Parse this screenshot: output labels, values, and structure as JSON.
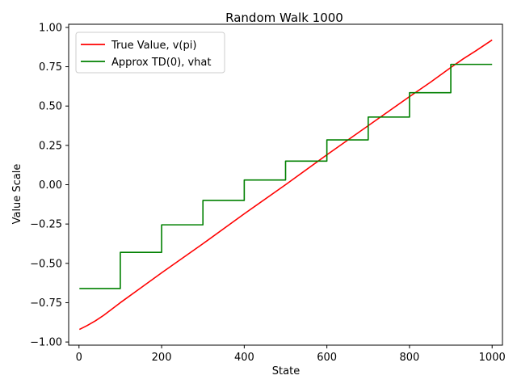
{
  "chart_data": {
    "type": "line",
    "title": "Random Walk 1000",
    "xlabel": "State",
    "ylabel": "Value Scale",
    "xlim": [
      -25,
      1025
    ],
    "ylim": [
      -1.02,
      1.02
    ],
    "xticks": [
      0,
      200,
      400,
      600,
      800,
      1000
    ],
    "xtick_labels": [
      "0",
      "200",
      "400",
      "600",
      "800",
      "1000"
    ],
    "yticks": [
      -1.0,
      -0.75,
      -0.5,
      -0.25,
      0.0,
      0.25,
      0.5,
      0.75,
      1.0
    ],
    "ytick_labels": [
      "−1.00",
      "−0.75",
      "−0.50",
      "−0.25",
      "0.00",
      "0.25",
      "0.50",
      "0.75",
      "1.00"
    ],
    "grid": false,
    "legend_position": "upper-left",
    "series": [
      {
        "name": "True Value, v(pi)",
        "color": "#ff0000",
        "x": [
          1,
          20,
          40,
          60,
          80,
          100,
          150,
          200,
          300,
          400,
          500,
          600,
          700,
          800,
          850,
          900,
          930,
          960,
          1000
        ],
        "y": [
          -0.92,
          -0.895,
          -0.865,
          -0.83,
          -0.79,
          -0.75,
          -0.655,
          -0.56,
          -0.375,
          -0.185,
          0.0,
          0.19,
          0.375,
          0.56,
          0.65,
          0.745,
          0.8,
          0.85,
          0.92
        ]
      },
      {
        "name": "Approx TD(0), vhat",
        "color": "#008000",
        "x": [
          1,
          100,
          100,
          200,
          200,
          300,
          300,
          400,
          400,
          500,
          500,
          600,
          600,
          700,
          700,
          800,
          800,
          900,
          900,
          1000
        ],
        "y": [
          -0.66,
          -0.66,
          -0.43,
          -0.43,
          -0.255,
          -0.255,
          -0.1,
          -0.1,
          0.03,
          0.03,
          0.15,
          0.15,
          0.285,
          0.285,
          0.43,
          0.43,
          0.585,
          0.585,
          0.765,
          0.765
        ]
      }
    ]
  }
}
